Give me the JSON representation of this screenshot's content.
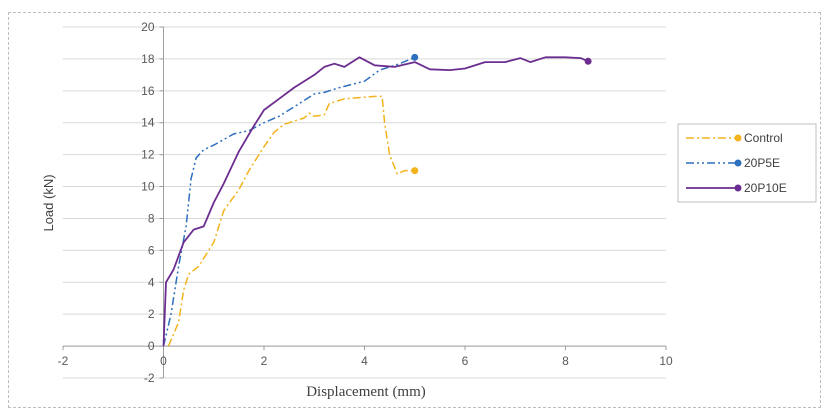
{
  "chart_data": {
    "type": "line",
    "title": "",
    "xlabel": "Displacement (mm)",
    "ylabel": "Load (kN)",
    "xlim": [
      -2,
      10
    ],
    "ylim": [
      -2,
      20
    ],
    "x_ticks": [
      -2,
      0,
      2,
      4,
      6,
      8,
      10
    ],
    "y_ticks": [
      -2,
      0,
      2,
      4,
      6,
      8,
      10,
      12,
      14,
      16,
      18,
      20
    ],
    "grid": "horizontal",
    "legend_position": "right",
    "series": [
      {
        "name": "Control",
        "color": "#f2b31d",
        "dash": "dash-dot",
        "points": [
          [
            0.1,
            0
          ],
          [
            0.3,
            1.5
          ],
          [
            0.4,
            3.5
          ],
          [
            0.5,
            4.5
          ],
          [
            0.7,
            5
          ],
          [
            0.9,
            6
          ],
          [
            1.0,
            6.5
          ],
          [
            1.2,
            8.5
          ],
          [
            1.5,
            9.8
          ],
          [
            1.7,
            11
          ],
          [
            2.0,
            12.5
          ],
          [
            2.2,
            13.4
          ],
          [
            2.4,
            13.9
          ],
          [
            2.8,
            14.3
          ],
          [
            2.9,
            14.6
          ],
          [
            3.0,
            14.4
          ],
          [
            3.2,
            14.5
          ],
          [
            3.3,
            15.2
          ],
          [
            3.6,
            15.5
          ],
          [
            4.0,
            15.6
          ],
          [
            4.2,
            15.65
          ],
          [
            4.35,
            15.65
          ],
          [
            4.4,
            14
          ],
          [
            4.5,
            12
          ],
          [
            4.65,
            10.8
          ],
          [
            4.8,
            11
          ],
          [
            5.0,
            11
          ]
        ],
        "end_marker": [
          5.0,
          11
        ]
      },
      {
        "name": "20P5E",
        "color": "#2e6fbd",
        "dash": "dash-dot-dot",
        "points": [
          [
            0,
            0
          ],
          [
            0.15,
            2
          ],
          [
            0.3,
            5
          ],
          [
            0.45,
            7.5
          ],
          [
            0.55,
            10.5
          ],
          [
            0.65,
            11.8
          ],
          [
            0.8,
            12.3
          ],
          [
            1.0,
            12.6
          ],
          [
            1.4,
            13.3
          ],
          [
            1.7,
            13.5
          ],
          [
            2.0,
            14
          ],
          [
            2.3,
            14.4
          ],
          [
            2.7,
            15.2
          ],
          [
            3.0,
            15.8
          ],
          [
            3.2,
            15.9
          ],
          [
            3.5,
            16.2
          ],
          [
            4.0,
            16.6
          ],
          [
            4.3,
            17.3
          ],
          [
            4.7,
            17.7
          ],
          [
            5.0,
            18.1
          ]
        ],
        "end_marker": [
          5.0,
          18.1
        ]
      },
      {
        "name": "20P10E",
        "color": "#6b2d8f",
        "dash": "solid",
        "points": [
          [
            0,
            0
          ],
          [
            0.05,
            4
          ],
          [
            0.2,
            4.8
          ],
          [
            0.4,
            6.5
          ],
          [
            0.6,
            7.3
          ],
          [
            0.8,
            7.5
          ],
          [
            1.0,
            9
          ],
          [
            1.2,
            10.2
          ],
          [
            1.5,
            12.2
          ],
          [
            1.8,
            13.8
          ],
          [
            2.0,
            14.8
          ],
          [
            2.3,
            15.5
          ],
          [
            2.6,
            16.2
          ],
          [
            3.0,
            17
          ],
          [
            3.2,
            17.5
          ],
          [
            3.4,
            17.7
          ],
          [
            3.6,
            17.5
          ],
          [
            3.9,
            18.1
          ],
          [
            4.2,
            17.6
          ],
          [
            4.6,
            17.5
          ],
          [
            5.0,
            17.8
          ],
          [
            5.3,
            17.35
          ],
          [
            5.7,
            17.3
          ],
          [
            6.0,
            17.4
          ],
          [
            6.4,
            17.8
          ],
          [
            6.8,
            17.8
          ],
          [
            7.1,
            18.05
          ],
          [
            7.3,
            17.8
          ],
          [
            7.6,
            18.1
          ],
          [
            8.0,
            18.1
          ],
          [
            8.3,
            18.05
          ],
          [
            8.45,
            17.85
          ]
        ],
        "end_marker": [
          8.45,
          17.85
        ]
      }
    ]
  }
}
